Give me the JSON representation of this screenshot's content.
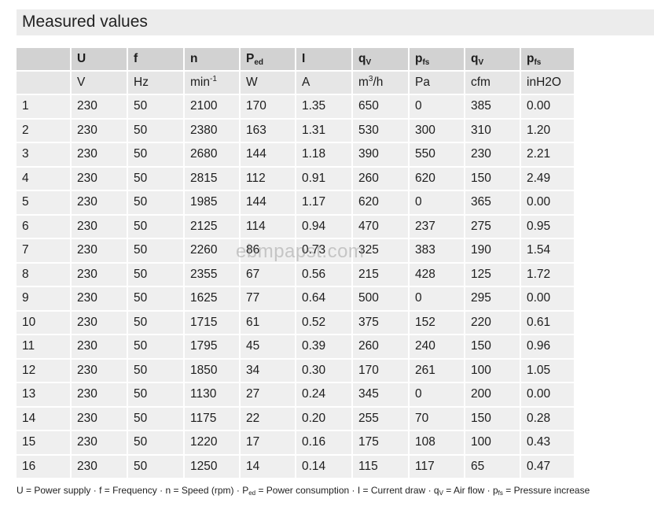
{
  "title": "Measured values",
  "header": [
    {
      "sym": "",
      "sub": ""
    },
    {
      "sym": "U",
      "sub": ""
    },
    {
      "sym": "f",
      "sub": ""
    },
    {
      "sym": "n",
      "sub": ""
    },
    {
      "sym": "P",
      "sub": "ed"
    },
    {
      "sym": "I",
      "sub": ""
    },
    {
      "sym": "q",
      "sub": "V"
    },
    {
      "sym": "p",
      "sub": "fs"
    },
    {
      "sym": "q",
      "sub": "V"
    },
    {
      "sym": "p",
      "sub": "fs"
    }
  ],
  "units": [
    {
      "base": "",
      "sup": ""
    },
    {
      "base": "V",
      "sup": ""
    },
    {
      "base": "Hz",
      "sup": ""
    },
    {
      "base": "min",
      "sup": "-1"
    },
    {
      "base": "W",
      "sup": ""
    },
    {
      "base": "A",
      "sup": ""
    },
    {
      "base": "m",
      "sup": "3",
      "tail": "/h"
    },
    {
      "base": "Pa",
      "sup": ""
    },
    {
      "base": "cfm",
      "sup": ""
    },
    {
      "base": "inH2O",
      "sup": ""
    }
  ],
  "rows": [
    [
      "1",
      "230",
      "50",
      "2100",
      "170",
      "1.35",
      "650",
      "0",
      "385",
      "0.00"
    ],
    [
      "2",
      "230",
      "50",
      "2380",
      "163",
      "1.31",
      "530",
      "300",
      "310",
      "1.20"
    ],
    [
      "3",
      "230",
      "50",
      "2680",
      "144",
      "1.18",
      "390",
      "550",
      "230",
      "2.21"
    ],
    [
      "4",
      "230",
      "50",
      "2815",
      "112",
      "0.91",
      "260",
      "620",
      "150",
      "2.49"
    ],
    [
      "5",
      "230",
      "50",
      "1985",
      "144",
      "1.17",
      "620",
      "0",
      "365",
      "0.00"
    ],
    [
      "6",
      "230",
      "50",
      "2125",
      "114",
      "0.94",
      "470",
      "237",
      "275",
      "0.95"
    ],
    [
      "7",
      "230",
      "50",
      "2260",
      "86",
      "0.73",
      "325",
      "383",
      "190",
      "1.54"
    ],
    [
      "8",
      "230",
      "50",
      "2355",
      "67",
      "0.56",
      "215",
      "428",
      "125",
      "1.72"
    ],
    [
      "9",
      "230",
      "50",
      "1625",
      "77",
      "0.64",
      "500",
      "0",
      "295",
      "0.00"
    ],
    [
      "10",
      "230",
      "50",
      "1715",
      "61",
      "0.52",
      "375",
      "152",
      "220",
      "0.61"
    ],
    [
      "11",
      "230",
      "50",
      "1795",
      "45",
      "0.39",
      "260",
      "240",
      "150",
      "0.96"
    ],
    [
      "12",
      "230",
      "50",
      "1850",
      "34",
      "0.30",
      "170",
      "261",
      "100",
      "1.05"
    ],
    [
      "13",
      "230",
      "50",
      "1130",
      "27",
      "0.24",
      "345",
      "0",
      "200",
      "0.00"
    ],
    [
      "14",
      "230",
      "50",
      "1175",
      "22",
      "0.20",
      "255",
      "70",
      "150",
      "0.28"
    ],
    [
      "15",
      "230",
      "50",
      "1220",
      "17",
      "0.16",
      "175",
      "108",
      "100",
      "0.43"
    ],
    [
      "16",
      "230",
      "50",
      "1250",
      "14",
      "0.14",
      "115",
      "117",
      "65",
      "0.47"
    ]
  ],
  "watermark": "ebmpapst.com",
  "legend": [
    {
      "sym": "U",
      "sub": "",
      "desc": " = Power supply"
    },
    {
      "sym": "f",
      "sub": "",
      "desc": " = Frequency"
    },
    {
      "sym": "n",
      "sub": "",
      "desc": " = Speed (rpm)"
    },
    {
      "sym": "P",
      "sub": "ed",
      "desc": " = Power consumption"
    },
    {
      "sym": "I",
      "sub": "",
      "desc": " = Current draw"
    },
    {
      "sym": "q",
      "sub": "V",
      "desc": " = Air flow"
    },
    {
      "sym": "p",
      "sub": "fs",
      "desc": " = Pressure increase"
    }
  ],
  "legend_separator": " · "
}
